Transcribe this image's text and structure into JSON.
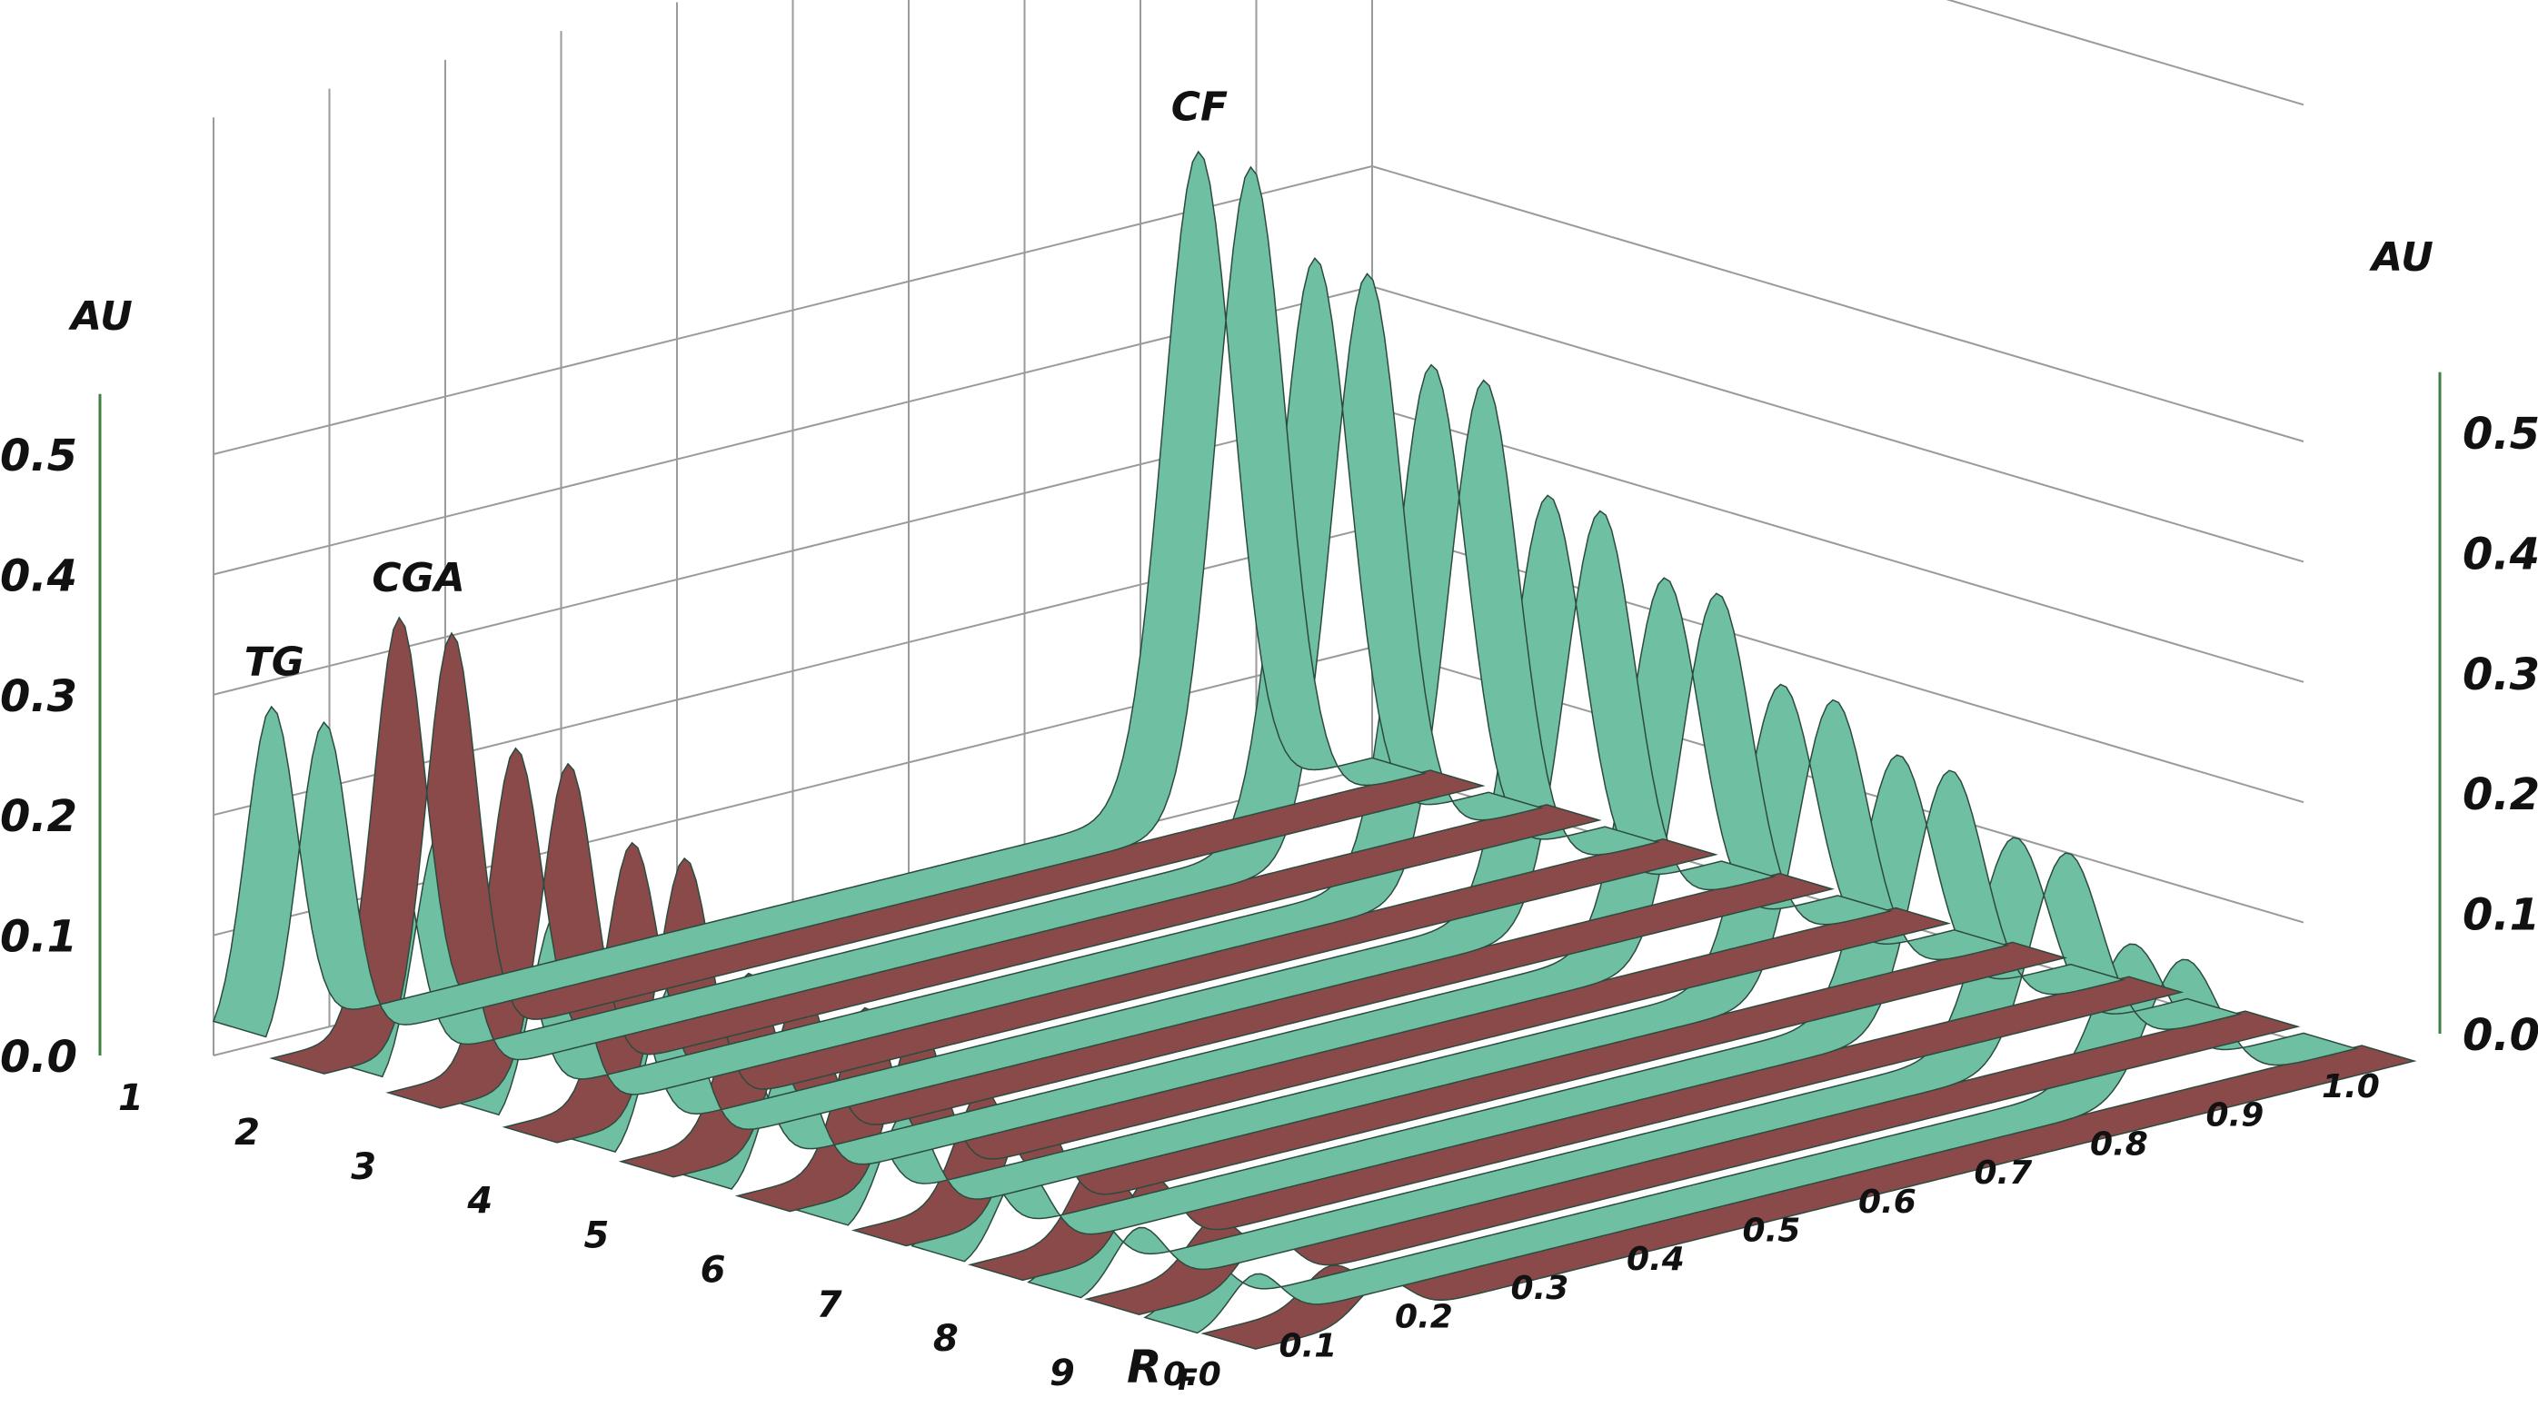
{
  "chart_data": {
    "type": "area",
    "title": "",
    "left_axis_label": "AU",
    "right_axis_label": "AU",
    "x_axis_label": "R",
    "x_axis_label_subscript": "F",
    "y_ticks": [
      "0.0",
      "0.1",
      "0.2",
      "0.3",
      "0.4",
      "0.5"
    ],
    "x_ticks": [
      "0.0",
      "0.1",
      "0.2",
      "0.3",
      "0.4",
      "0.5",
      "0.6",
      "0.7",
      "0.8",
      "0.9",
      "1.0"
    ],
    "tracks": [
      "1",
      "2",
      "3",
      "4",
      "5",
      "6",
      "7",
      "8",
      "9"
    ],
    "ylim": [
      0,
      0.55
    ],
    "xlim": [
      0,
      1
    ],
    "grid": true,
    "colors": {
      "teal": "#6fbfa3",
      "maroon": "#8a4a4a"
    },
    "peak_labels": [
      {
        "text": "TG",
        "track": 1,
        "rf": 0.05
      },
      {
        "text": "CGA",
        "track": 1,
        "rf": 0.11
      },
      {
        "text": "CF",
        "track": 1,
        "rf": 0.85
      }
    ],
    "series": [
      {
        "track": 1,
        "cf_peak": 0.54,
        "cf_rf": 0.85,
        "tg_peak": 0.27,
        "tg_rf": 0.05,
        "cga_peak": 0.34,
        "cga_rf": 0.11
      },
      {
        "track": 2,
        "cf_peak": 0.48,
        "cf_rf": 0.85,
        "tg_peak": 0.21,
        "tg_rf": 0.05,
        "cga_peak": 0.26,
        "cga_rf": 0.11
      },
      {
        "track": 3,
        "cf_peak": 0.42,
        "cf_rf": 0.85,
        "tg_peak": 0.17,
        "tg_rf": 0.05,
        "cga_peak": 0.21,
        "cga_rf": 0.11
      },
      {
        "track": 4,
        "cf_peak": 0.34,
        "cf_rf": 0.85,
        "tg_peak": 0.14,
        "tg_rf": 0.05,
        "cga_peak": 0.13,
        "cga_rf": 0.11
      },
      {
        "track": 5,
        "cf_peak": 0.3,
        "cf_rf": 0.85,
        "tg_peak": 0.11,
        "tg_rf": 0.05,
        "cga_peak": 0.13,
        "cga_rf": 0.11
      },
      {
        "track": 6,
        "cf_peak": 0.24,
        "cf_rf": 0.85,
        "tg_peak": 0.09,
        "tg_rf": 0.05,
        "cga_peak": 0.09,
        "cga_rf": 0.11
      },
      {
        "track": 7,
        "cf_peak": 0.21,
        "cf_rf": 0.85,
        "tg_peak": 0.07,
        "tg_rf": 0.05,
        "cga_peak": 0.06,
        "cga_rf": 0.11
      },
      {
        "track": 8,
        "cf_peak": 0.17,
        "cf_rf": 0.85,
        "tg_peak": 0.05,
        "tg_rf": 0.05,
        "cga_peak": 0.04,
        "cga_rf": 0.11
      },
      {
        "track": 9,
        "cf_peak": 0.11,
        "cf_rf": 0.85,
        "tg_peak": 0.04,
        "tg_rf": 0.05,
        "cga_peak": 0.03,
        "cga_rf": 0.11
      }
    ]
  }
}
